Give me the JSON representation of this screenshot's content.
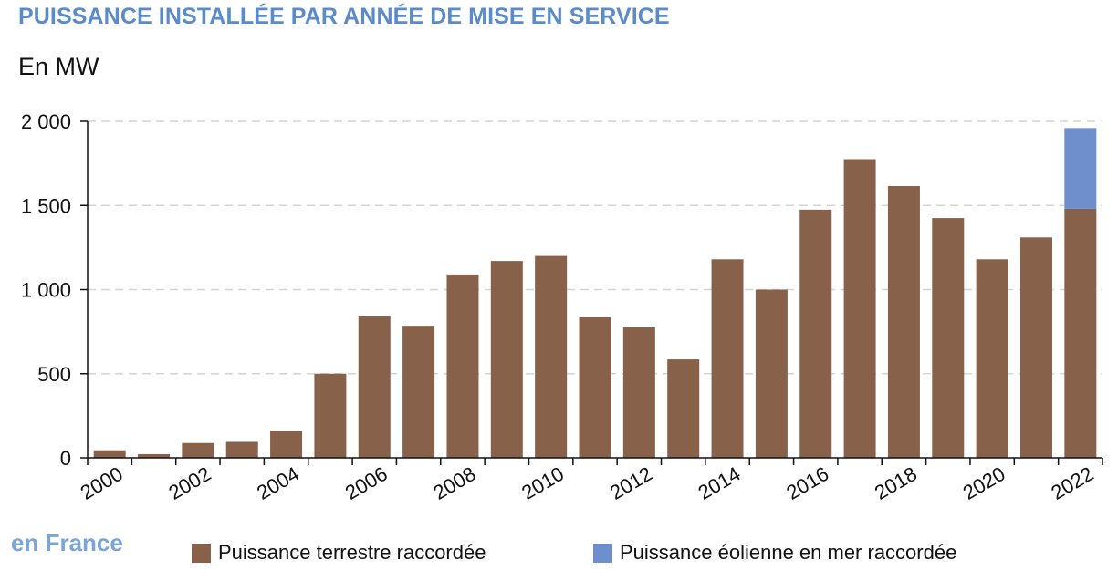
{
  "title": "PUISSANCE INSTALLÉE PAR ANNÉE DE MISE EN SERVICE",
  "unit_label": "En MW",
  "footer_note": "en France",
  "colors": {
    "title": "#5b8bc9",
    "onshore": "#87614a",
    "offshore": "#6f8fcc",
    "grid": "#d4d4d4",
    "axis": "#111111"
  },
  "chart_data": {
    "type": "bar",
    "stacked": true,
    "categories": [
      "2000",
      "2001",
      "2002",
      "2003",
      "2004",
      "2005",
      "2006",
      "2007",
      "2008",
      "2009",
      "2010",
      "2011",
      "2012",
      "2013",
      "2014",
      "2015",
      "2016",
      "2017",
      "2018",
      "2019",
      "2020",
      "2021",
      "2022"
    ],
    "x_tick_labels": [
      "2000",
      "2002",
      "2004",
      "2006",
      "2008",
      "2010",
      "2012",
      "2014",
      "2016",
      "2018",
      "2020",
      "2022"
    ],
    "y_tick_labels": [
      "0",
      "500",
      "1 000",
      "1 500",
      "2 000"
    ],
    "y_ticks": [
      0,
      500,
      1000,
      1500,
      2000
    ],
    "ylim": [
      0,
      2000
    ],
    "grid": "horizontal dashed",
    "legend_position": "bottom",
    "series": [
      {
        "name": "Puissance terrestre raccordée",
        "color": "#87614a",
        "values": [
          45,
          22,
          88,
          95,
          160,
          500,
          840,
          785,
          1090,
          1170,
          1200,
          835,
          775,
          585,
          1180,
          1000,
          1475,
          1775,
          1615,
          1425,
          1180,
          1310,
          1480
        ]
      },
      {
        "name": "Puissance éolienne en mer raccordée",
        "color": "#6f8fcc",
        "values": [
          0,
          0,
          0,
          0,
          0,
          0,
          0,
          0,
          0,
          0,
          0,
          0,
          0,
          0,
          0,
          0,
          0,
          0,
          0,
          0,
          0,
          0,
          480
        ]
      }
    ]
  }
}
